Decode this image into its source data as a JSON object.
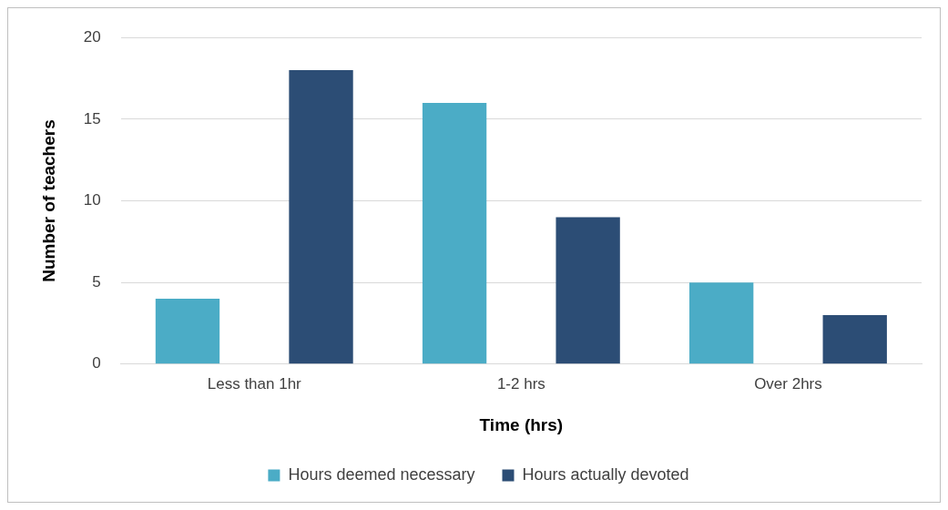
{
  "chart_data": {
    "type": "bar",
    "xlabel": "Time (hrs)",
    "ylabel": "Number of teachers",
    "categories": [
      "Less than 1hr",
      "1-2 hrs",
      "Over 2hrs"
    ],
    "series": [
      {
        "name": "Hours deemed necessary",
        "color": "#4bacc6",
        "values": [
          4,
          16,
          5
        ]
      },
      {
        "name": "Hours actually devoted",
        "color": "#2c4d75",
        "values": [
          18,
          9,
          3
        ]
      }
    ],
    "ylim": [
      0,
      20
    ],
    "yticks": [
      0,
      5,
      10,
      15,
      20
    ],
    "grid": "y",
    "legend": "bottom"
  }
}
